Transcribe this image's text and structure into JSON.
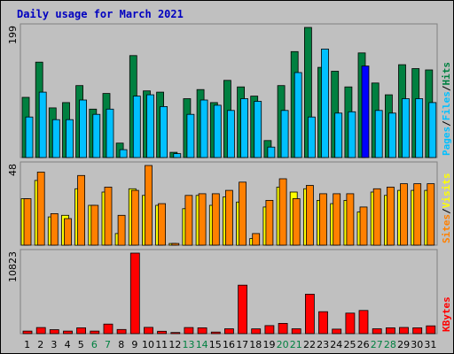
{
  "title": "Daily usage for March 2021",
  "colors": {
    "title": "#0000c0",
    "hits": "#008040",
    "files": "#00c0ff",
    "pages": "#00c0ff",
    "visits": "#ff8000",
    "sites": "#ffff00",
    "kbytes": "#ff0000",
    "weekend_day": "#008040",
    "weekday": "#000000",
    "highlight_bar": "#0000ff"
  },
  "chart_data": {
    "type": "bar",
    "categories": [
      "1",
      "2",
      "3",
      "4",
      "5",
      "6",
      "7",
      "8",
      "9",
      "10",
      "11",
      "12",
      "13",
      "14",
      "15",
      "16",
      "17",
      "18",
      "19",
      "20",
      "21",
      "22",
      "23",
      "24",
      "25",
      "26",
      "27",
      "28",
      "29",
      "30",
      "31"
    ],
    "weekend_days": [
      "6",
      "7",
      "13",
      "14",
      "20",
      "21",
      "27",
      "28"
    ],
    "panels": [
      {
        "id": "hits_files_pages",
        "ymax_label": "199",
        "ymax": 199,
        "legend": [
          "Pages",
          "Files",
          "Hits"
        ],
        "series": [
          {
            "name": "Hits",
            "values": [
              92,
              146,
              76,
              84,
              110,
              74,
              98,
              22,
              156,
              102,
              100,
              8,
              90,
              104,
              84,
              118,
              108,
              94,
              26,
              110,
              162,
              199,
              138,
              132,
              108,
              160,
              114,
              96,
              142,
              136,
              134
            ]
          },
          {
            "name": "Files",
            "values": [
              62,
              100,
              58,
              58,
              88,
              66,
              74,
              12,
              94,
              96,
              78,
              6,
              66,
              88,
              80,
              72,
              90,
              86,
              16,
              72,
              130,
              62,
              166,
              68,
              70,
              140,
              72,
              68,
              90,
              90,
              84
            ]
          },
          {
            "name": "Pages",
            "values": [
              0,
              0,
              0,
              0,
              0,
              0,
              0,
              0,
              0,
              0,
              0,
              0,
              0,
              0,
              0,
              0,
              0,
              0,
              0,
              0,
              0,
              0,
              0,
              0,
              0,
              0,
              0,
              0,
              0,
              0,
              0
            ]
          }
        ],
        "highlight_day": "26"
      },
      {
        "id": "visits_sites",
        "ymax_label": "48",
        "ymax": 48,
        "legend": [
          "Sites",
          "Visits"
        ],
        "series": [
          {
            "name": "Visits",
            "values": [
              28,
              44,
              19,
              16,
              42,
              24,
              35,
              18,
              33,
              48,
              25,
              1,
              30,
              31,
              31,
              33,
              38,
              7,
              27,
              40,
              28,
              36,
              31,
              31,
              31,
              23,
              34,
              35,
              37,
              37,
              37
            ]
          },
          {
            "name": "Sites",
            "values": [
              28,
              39,
              17,
              18,
              34,
              24,
              32,
              7,
              34,
              30,
              24,
              1,
              22,
              30,
              24,
              29,
              26,
              4,
              23,
              35,
              32,
              34,
              27,
              25,
              27,
              20,
              32,
              30,
              33,
              33,
              33
            ]
          }
        ]
      },
      {
        "id": "kbytes",
        "ymax_label": "10823",
        "ymax": 10823,
        "legend": [
          "KBytes"
        ],
        "series": [
          {
            "name": "KBytes",
            "values": [
              340,
              820,
              540,
              340,
              780,
              340,
              1280,
              560,
              10823,
              840,
              320,
              160,
              820,
              780,
              210,
              650,
              6520,
              640,
              1080,
              1380,
              650,
              5300,
              2950,
              610,
              2760,
              3120,
              650,
              780,
              830,
              790,
              1050
            ]
          }
        ]
      }
    ]
  }
}
